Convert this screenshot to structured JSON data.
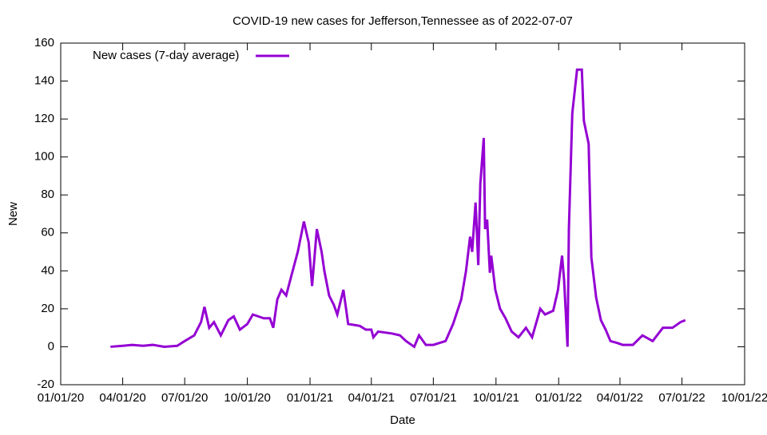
{
  "chart_data": {
    "type": "line",
    "title": "COVID-19 new cases for Jefferson,Tennessee as of 2022-07-07",
    "x_label": "Date",
    "y_label": "New",
    "legend": "top-left",
    "x": [
      "2020-03-14",
      "2020-04-01",
      "2020-04-15",
      "2020-05-01",
      "2020-05-15",
      "2020-06-01",
      "2020-06-20",
      "2020-07-01",
      "2020-07-15",
      "2020-07-25",
      "2020-07-30",
      "2020-08-06",
      "2020-08-13",
      "2020-08-23",
      "2020-09-03",
      "2020-09-11",
      "2020-09-20",
      "2020-10-01",
      "2020-10-09",
      "2020-10-25",
      "2020-11-03",
      "2020-11-08",
      "2020-11-14",
      "2020-11-20",
      "2020-11-27",
      "2020-12-05",
      "2020-12-14",
      "2020-12-23",
      "2020-12-30",
      "2021-01-04",
      "2021-01-11",
      "2021-01-18",
      "2021-01-22",
      "2021-01-29",
      "2021-02-05",
      "2021-02-10",
      "2021-02-19",
      "2021-02-26",
      "2021-03-15",
      "2021-03-24",
      "2021-04-01",
      "2021-04-04",
      "2021-04-11",
      "2021-05-01",
      "2021-05-13",
      "2021-05-22",
      "2021-06-03",
      "2021-06-10",
      "2021-06-20",
      "2021-07-01",
      "2021-07-19",
      "2021-07-30",
      "2021-08-11",
      "2021-08-18",
      "2021-08-24",
      "2021-08-27",
      "2021-09-01",
      "2021-09-05",
      "2021-09-08",
      "2021-09-13",
      "2021-09-15",
      "2021-09-18",
      "2021-09-22",
      "2021-09-24",
      "2021-09-30",
      "2021-10-07",
      "2021-10-15",
      "2021-10-24",
      "2021-11-03",
      "2021-11-14",
      "2021-11-23",
      "2021-12-05",
      "2021-12-12",
      "2021-12-24",
      "2021-12-31",
      "2022-01-06",
      "2022-01-09",
      "2022-01-14",
      "2022-01-16",
      "2022-01-21",
      "2022-01-28",
      "2022-02-04",
      "2022-02-07",
      "2022-02-14",
      "2022-02-18",
      "2022-02-25",
      "2022-03-04",
      "2022-03-11",
      "2022-03-18",
      "2022-03-28",
      "2022-04-05",
      "2022-04-20",
      "2022-05-04",
      "2022-05-19",
      "2022-06-03",
      "2022-06-17",
      "2022-06-29",
      "2022-07-06"
    ],
    "series": [
      {
        "name": "New cases (7-day average)",
        "color": "#9400d3",
        "values": [
          0,
          0.5,
          1,
          0.5,
          1,
          0,
          0.5,
          3,
          6,
          13,
          21,
          10,
          13,
          6,
          14,
          16,
          9,
          12,
          17,
          15,
          15,
          10,
          25,
          30,
          27,
          38,
          50,
          66,
          55,
          32,
          62,
          50,
          40,
          27,
          22,
          17,
          30,
          12,
          11,
          9,
          9,
          5,
          8,
          7,
          6,
          3,
          0,
          6,
          1,
          1,
          3,
          12,
          25,
          40,
          58,
          50,
          76,
          43,
          86,
          110,
          62,
          67,
          39,
          48,
          30,
          20,
          15,
          8,
          5,
          10,
          5,
          20,
          17,
          19,
          30,
          48,
          35,
          0,
          62,
          123,
          146,
          146,
          119,
          107,
          47,
          26,
          14,
          9,
          3,
          2,
          1,
          1,
          6,
          3,
          10,
          10,
          13,
          14
        ]
      }
    ],
    "xlim": [
      "2020-01-01",
      "2022-10-01"
    ],
    "xticks": [
      {
        "value": "2020-01-01",
        "label": "01/01/20"
      },
      {
        "value": "2020-04-01",
        "label": "04/01/20"
      },
      {
        "value": "2020-07-01",
        "label": "07/01/20"
      },
      {
        "value": "2020-10-01",
        "label": "10/01/20"
      },
      {
        "value": "2021-01-01",
        "label": "01/01/21"
      },
      {
        "value": "2021-04-01",
        "label": "04/01/21"
      },
      {
        "value": "2021-07-01",
        "label": "07/01/21"
      },
      {
        "value": "2021-10-01",
        "label": "10/01/21"
      },
      {
        "value": "2022-01-01",
        "label": "01/01/22"
      },
      {
        "value": "2022-04-01",
        "label": "04/01/22"
      },
      {
        "value": "2022-07-01",
        "label": "07/01/22"
      },
      {
        "value": "2022-10-01",
        "label": "10/01/22"
      }
    ],
    "ylim": [
      -20,
      160
    ],
    "yticks": [
      -20,
      0,
      20,
      40,
      60,
      80,
      100,
      120,
      140,
      160
    ]
  }
}
